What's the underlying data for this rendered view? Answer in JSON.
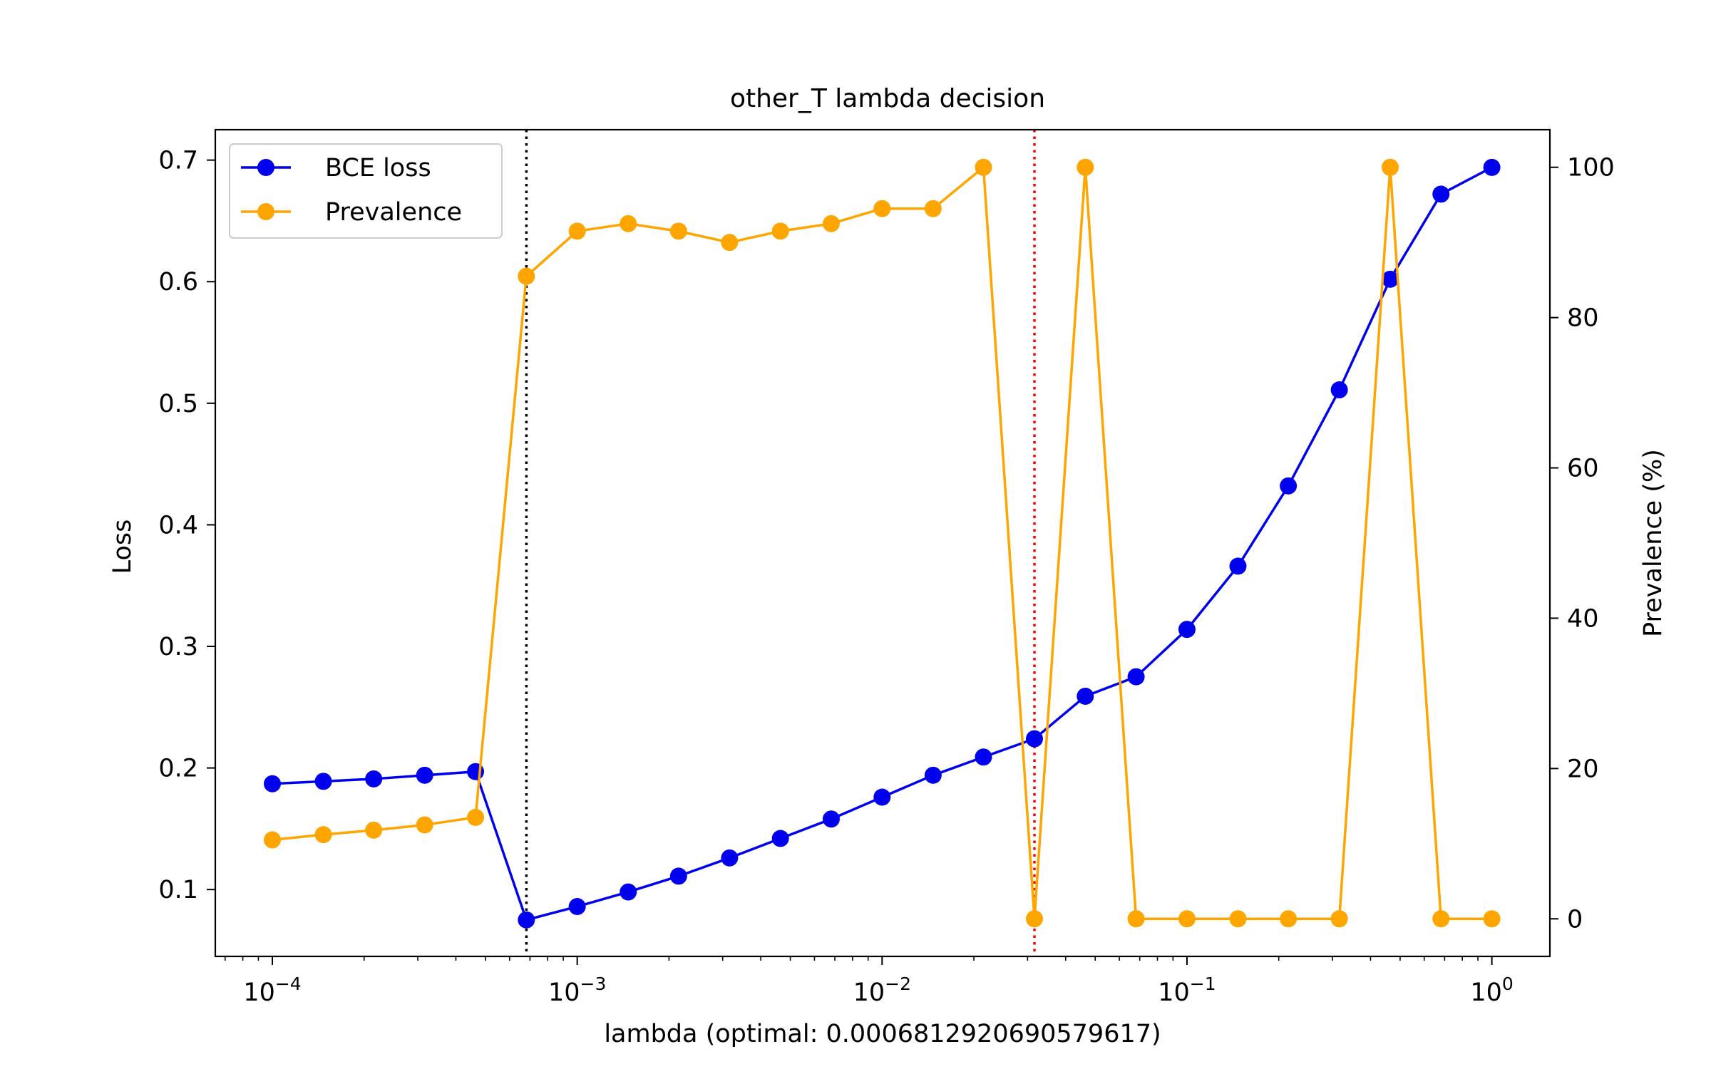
{
  "chart_data": {
    "type": "line",
    "title": "other_T lambda decision",
    "xlabel": "lambda (optimal: 0.0006812920690579617)",
    "ylabel": "Loss",
    "y2label": "Prevalence (%)",
    "xscale": "log",
    "xlim": [
      6.5e-05,
      1.55
    ],
    "ylim": [
      0.045,
      0.725
    ],
    "y2lim": [
      -5,
      105
    ],
    "grid": false,
    "legend_position": "top-left",
    "x_tick_labels": [
      {
        "base": "10",
        "exp": "−4",
        "value": 0.0001
      },
      {
        "base": "10",
        "exp": "−3",
        "value": 0.001
      },
      {
        "base": "10",
        "exp": "−2",
        "value": 0.01
      },
      {
        "base": "10",
        "exp": "−1",
        "value": 0.1
      },
      {
        "base": "10",
        "exp": "0",
        "value": 1
      }
    ],
    "y_ticks": [
      {
        "value": 0.1,
        "label": "0.1"
      },
      {
        "value": 0.2,
        "label": "0.2"
      },
      {
        "value": 0.3,
        "label": "0.3"
      },
      {
        "value": 0.4,
        "label": "0.4"
      },
      {
        "value": 0.5,
        "label": "0.5"
      },
      {
        "value": 0.6,
        "label": "0.6"
      },
      {
        "value": 0.7,
        "label": "0.7"
      }
    ],
    "y2_ticks": [
      {
        "value": 0,
        "label": "0"
      },
      {
        "value": 20,
        "label": "20"
      },
      {
        "value": 40,
        "label": "40"
      },
      {
        "value": 60,
        "label": "60"
      },
      {
        "value": 80,
        "label": "80"
      },
      {
        "value": 100,
        "label": "100"
      }
    ],
    "x": [
      0.0001,
      0.000147,
      0.000215,
      0.000316,
      0.000464,
      0.000681,
      0.001,
      0.00147,
      0.00215,
      0.00316,
      0.00464,
      0.00681,
      0.01,
      0.0147,
      0.0215,
      0.0316,
      0.0464,
      0.0681,
      0.1,
      0.147,
      0.215,
      0.316,
      0.464,
      0.681,
      1.0
    ],
    "series": [
      {
        "name": "BCE loss",
        "axis": "left",
        "color": "#0000ee",
        "values": [
          0.187,
          0.189,
          0.191,
          0.194,
          0.197,
          0.075,
          0.086,
          0.098,
          0.111,
          0.126,
          0.142,
          0.158,
          0.176,
          0.194,
          0.209,
          0.224,
          0.259,
          0.275,
          0.314,
          0.366,
          0.432,
          0.511,
          0.602,
          0.672,
          0.694
        ]
      },
      {
        "name": "Prevalence",
        "axis": "right",
        "color": "#ffa500",
        "values": [
          10.5,
          11.2,
          11.8,
          12.5,
          13.5,
          85.5,
          91.5,
          92.5,
          91.5,
          90.0,
          91.5,
          92.5,
          94.5,
          94.5,
          100,
          0,
          100,
          0,
          0,
          0,
          0,
          0,
          100,
          0,
          0
        ]
      }
    ],
    "vlines": [
      {
        "x": 0.0006812920690579617,
        "color": "#000000",
        "style": "dotted"
      },
      {
        "x": 0.0316,
        "color": "#ff0000",
        "style": "dotted"
      }
    ]
  }
}
